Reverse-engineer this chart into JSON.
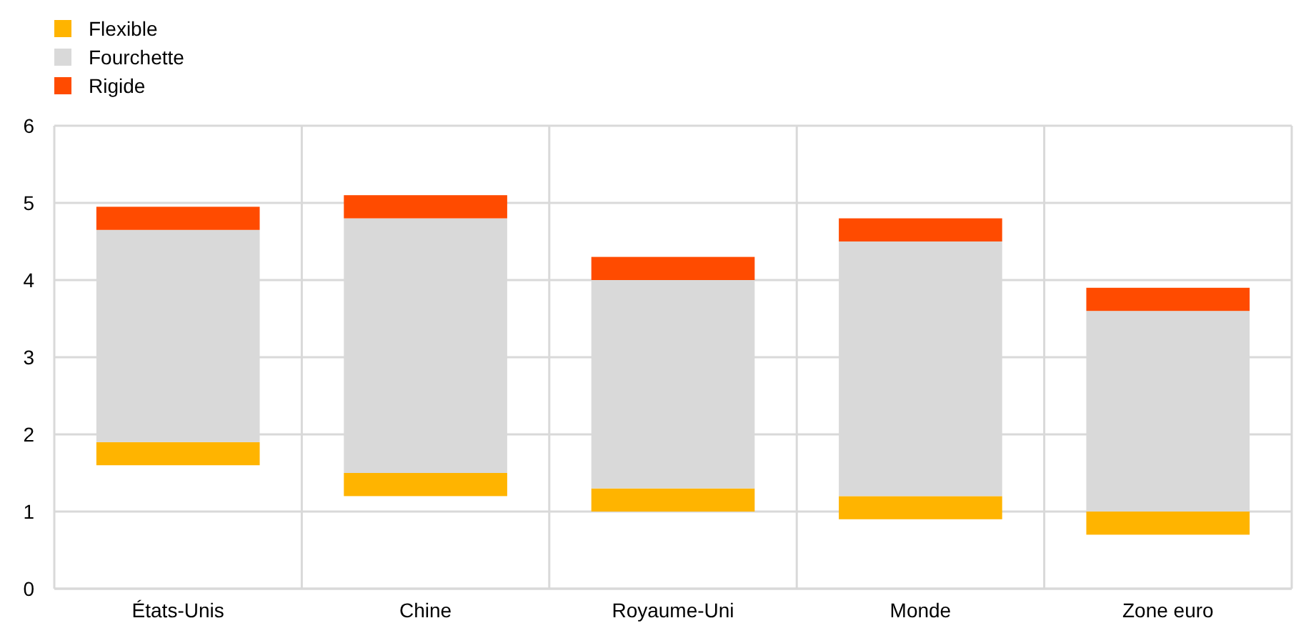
{
  "chart_data": {
    "type": "bar",
    "categories": [
      "États-Unis",
      "Chine",
      "Royaume-Uni",
      "Monde",
      "Zone euro"
    ],
    "series": [
      {
        "name": "Flexible",
        "color": "#ffb400",
        "base": [
          1.6,
          1.2,
          1.0,
          0.9,
          0.7
        ],
        "values": [
          0.3,
          0.3,
          0.3,
          0.3,
          0.3
        ]
      },
      {
        "name": "Fourchette",
        "color": "#d9d9d9",
        "base": [
          1.9,
          1.5,
          1.3,
          1.2,
          1.0
        ],
        "values": [
          2.75,
          3.3,
          2.7,
          3.3,
          2.6
        ]
      },
      {
        "name": "Rigide",
        "color": "#ff4b00",
        "base": [
          4.65,
          4.8,
          4.0,
          4.5,
          3.6
        ],
        "values": [
          0.3,
          0.3,
          0.3,
          0.3,
          0.3
        ]
      }
    ],
    "ylim": [
      0,
      6
    ],
    "yticks": [
      0,
      1,
      2,
      3,
      4,
      5,
      6
    ],
    "grid": true,
    "legend": "top left"
  }
}
